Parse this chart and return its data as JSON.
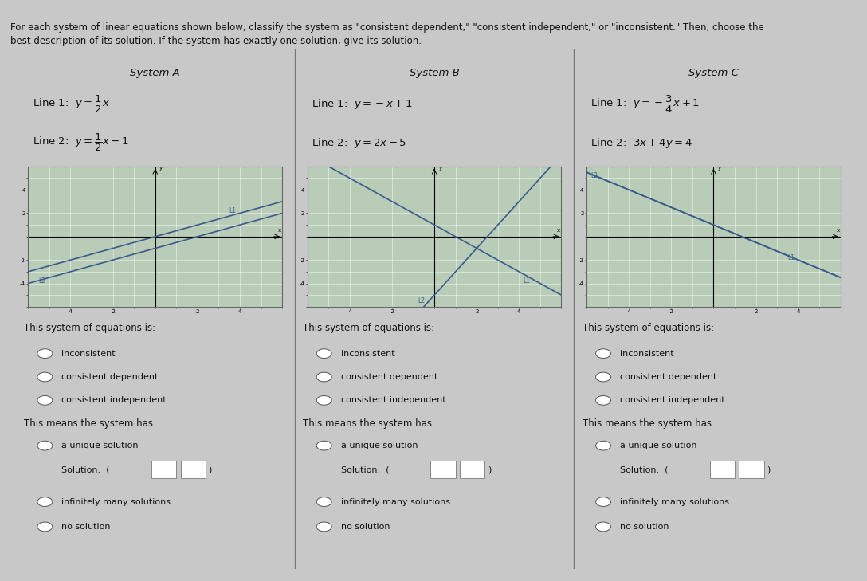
{
  "bg_color": "#c8c8c8",
  "panel_bg": "#e0e0e0",
  "graph_bg": "#b8ccb8",
  "graph_border": "#666666",
  "line_color": "#3a5a8a",
  "text_color": "#111111",
  "radio_color": "#444444",
  "header_text_line1": "For each system of linear equations shown below, classify the system as \"consistent dependent,\" \"consistent independent,\" or \"inconsistent.\" Then, choose the",
  "header_text_line2": "best description of its solution. If the system has exactly one solution, give its solution.",
  "systems": [
    {
      "title": "System A",
      "line1_math": "$y=\\dfrac{1}{2}x$",
      "line2_math": "$y=\\dfrac{1}{2}x-1$",
      "line1_slope": 0.5,
      "line1_intercept": 0.0,
      "line2_slope": 0.5,
      "line2_intercept": -1.0,
      "L1_pos": [
        3.5,
        2.2,
        "L1"
      ],
      "L2_pos": [
        -5.5,
        -3.8,
        "L2"
      ]
    },
    {
      "title": "System B",
      "line1_math": "$y=-x+1$",
      "line2_math": "$y=2x-5$",
      "line1_slope": -1.0,
      "line1_intercept": 1.0,
      "line2_slope": 2.0,
      "line2_intercept": -5.0,
      "L1_pos": [
        4.2,
        -3.8,
        "L1"
      ],
      "L2_pos": [
        -0.8,
        -5.5,
        "L2"
      ]
    },
    {
      "title": "System C",
      "line1_math": "$y=-\\dfrac{3}{4}x+1$",
      "line2_math": "$3x+4y=4$",
      "line1_slope": -0.75,
      "line1_intercept": 1.0,
      "line2_slope": -0.75,
      "line2_intercept": 1.0,
      "L1_pos": [
        3.5,
        -1.8,
        "L1"
      ],
      "L2_pos": [
        -5.8,
        5.2,
        "L2"
      ]
    }
  ],
  "graph_xlim": [
    -6,
    6
  ],
  "graph_ylim": [
    -6,
    6
  ],
  "radio_type_options": [
    "inconsistent",
    "consistent dependent",
    "consistent independent"
  ],
  "radio_means_options": [
    "a unique solution",
    "infinitely many solutions",
    "no solution"
  ],
  "font_size_header": 8.5,
  "font_size_title": 9.5,
  "font_size_eq": 9.5,
  "font_size_body": 8.5,
  "font_size_radio": 8.0
}
